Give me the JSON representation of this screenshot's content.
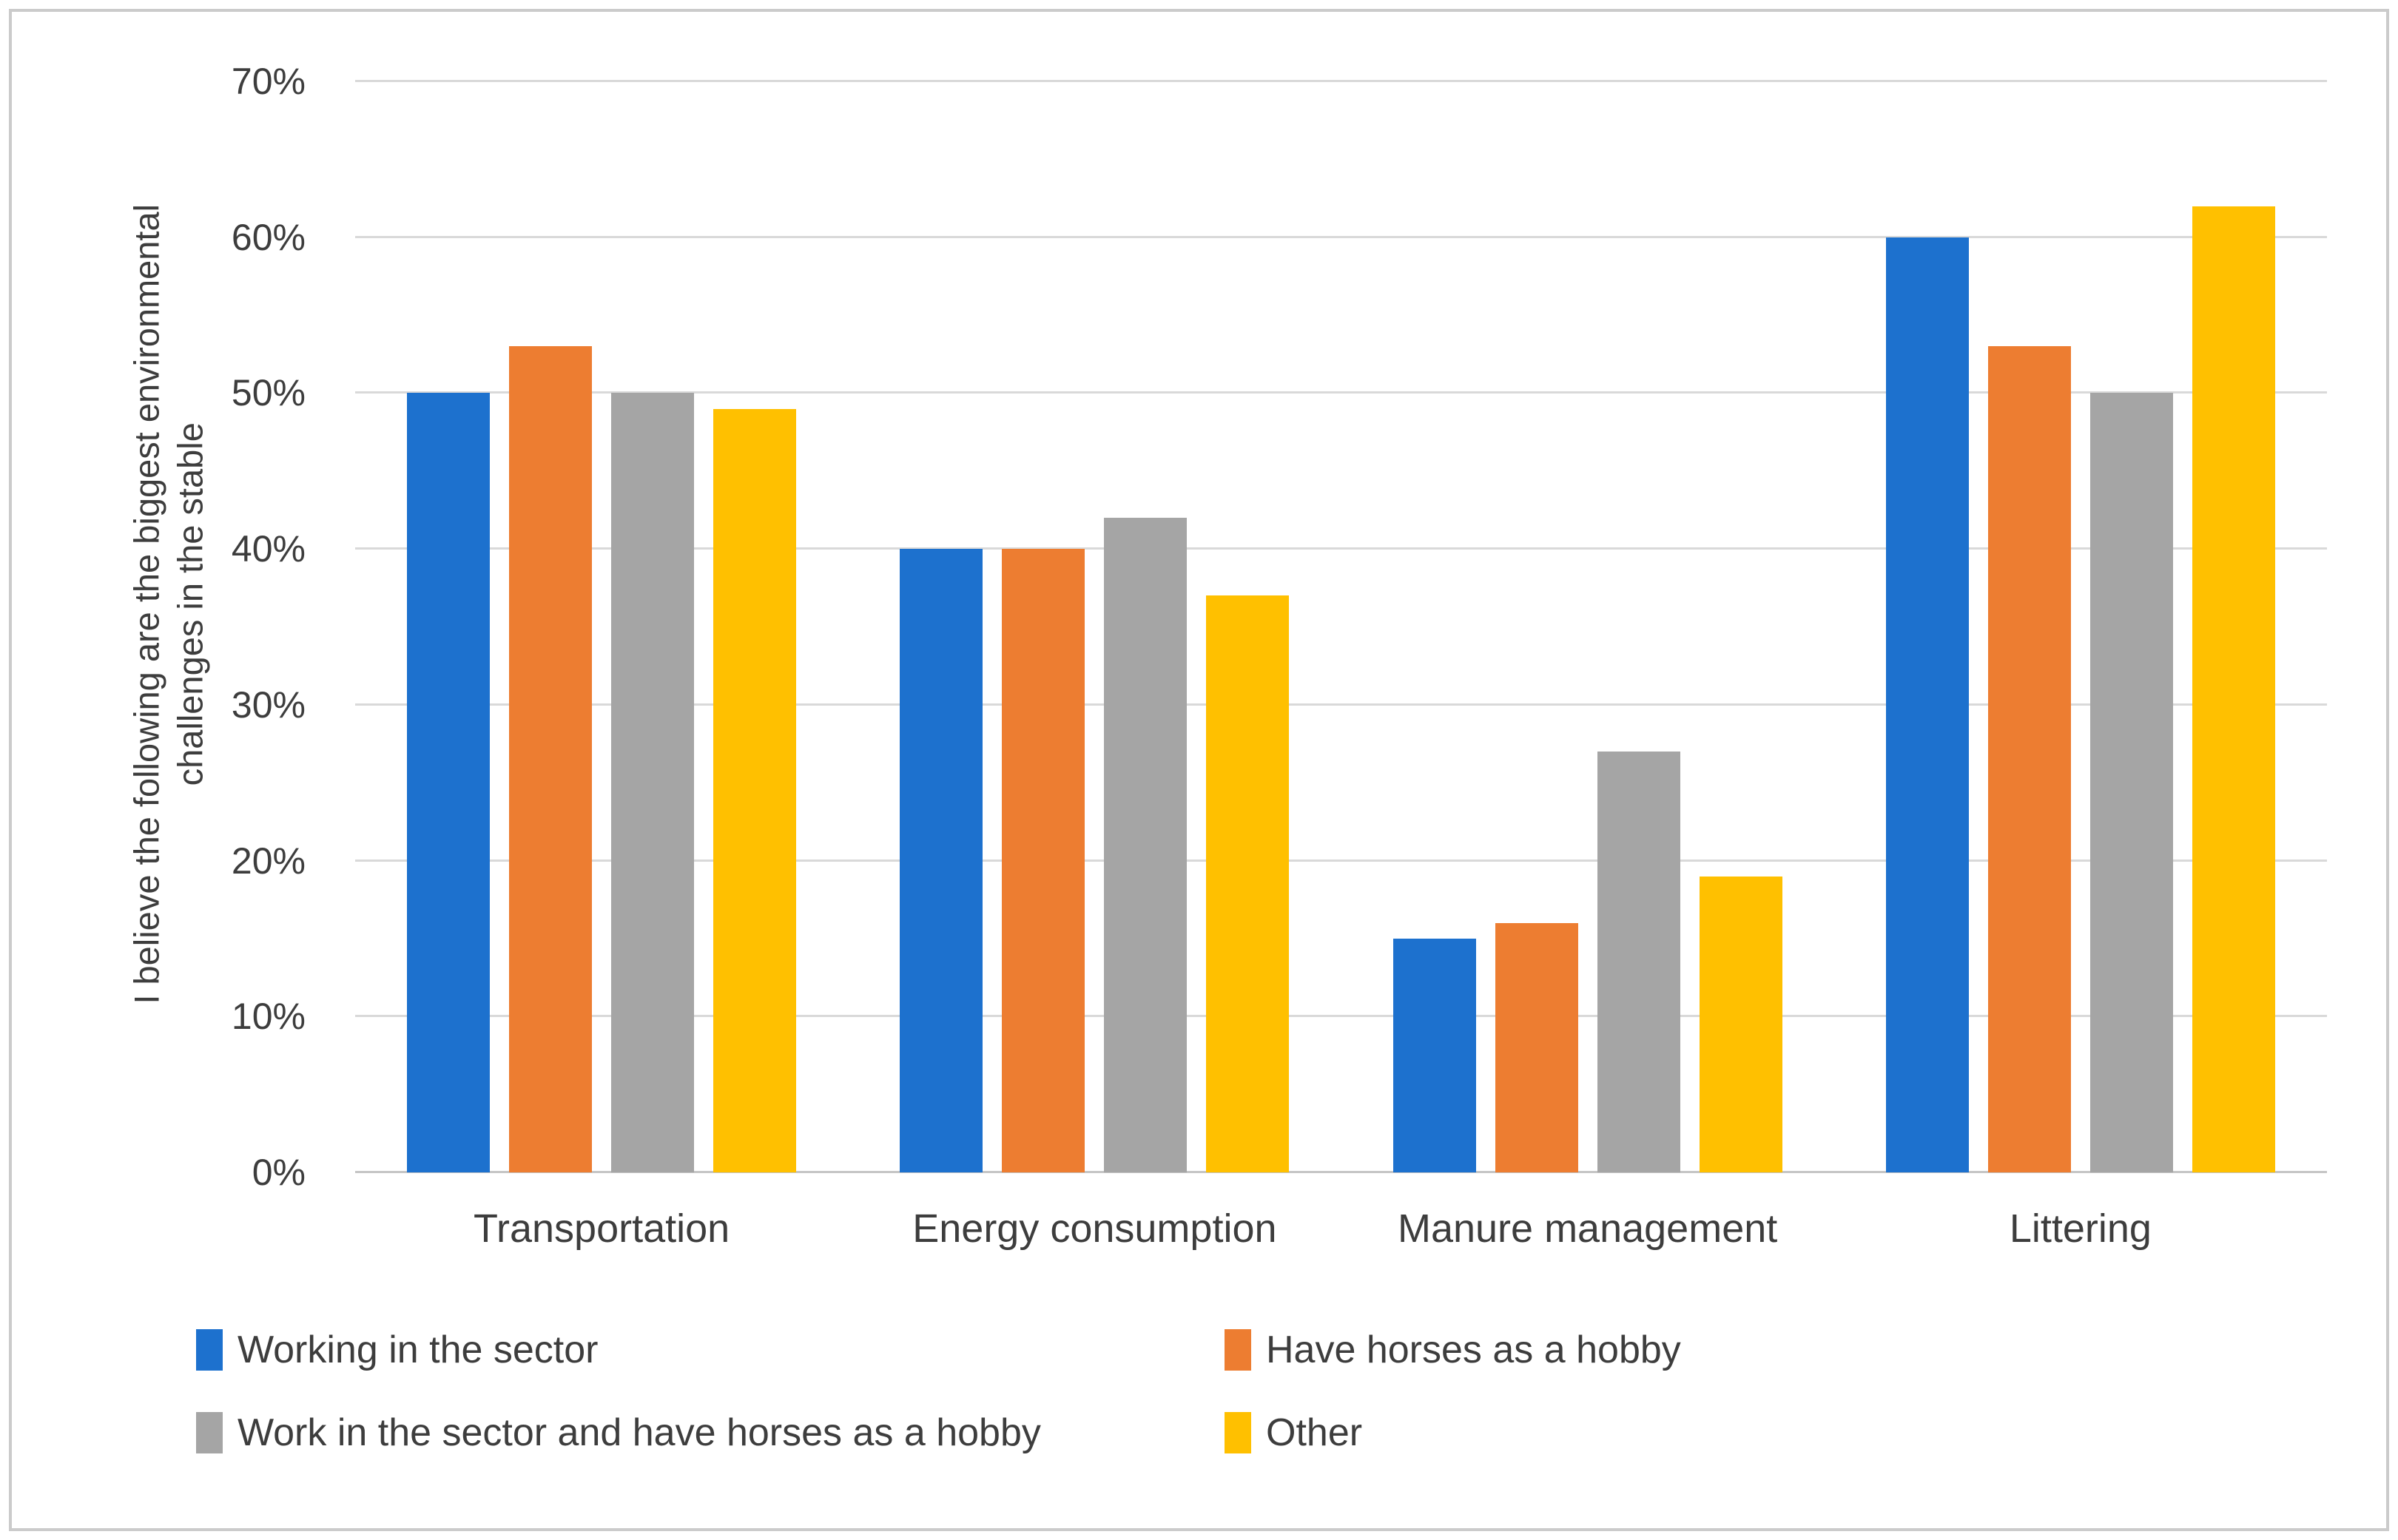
{
  "chart_data": {
    "type": "bar",
    "title": "",
    "categories": [
      "Transportation",
      "Energy consumption",
      "Manure management",
      "Littering"
    ],
    "series": [
      {
        "name": "Working in the sector",
        "color": "#1D71CE",
        "values": [
          50,
          40,
          15,
          60
        ]
      },
      {
        "name": "Have horses as a hobby",
        "color": "#ED7D31",
        "values": [
          53,
          40,
          16,
          53
        ]
      },
      {
        "name": "Work in the sector and have horses as a hobby",
        "color": "#A5A5A5",
        "values": [
          50,
          42,
          27,
          50
        ]
      },
      {
        "name": "Other",
        "color": "#FFC000",
        "values": [
          49,
          37,
          19,
          62
        ]
      }
    ],
    "ylabel": "I believe the following are the biggest environmental challenges in the stable",
    "ylabel_lines": [
      "I believe the following are the biggest environmental",
      "challenges in the stable"
    ],
    "xlabel": "",
    "ylim": [
      0,
      70
    ],
    "ytick_step": 10,
    "ytick_labels": [
      "0%",
      "10%",
      "20%",
      "30%",
      "40%",
      "50%",
      "60%",
      "70%"
    ],
    "grid": "horizontal",
    "legend_position": "bottom",
    "legend_columns": 2
  },
  "colors": {
    "gridline": "#D9D9D9",
    "axis_line": "#C6C6C6",
    "text": "#3D3D3D",
    "frame_border": "#CBCBCB",
    "background": "#FFFFFF"
  }
}
